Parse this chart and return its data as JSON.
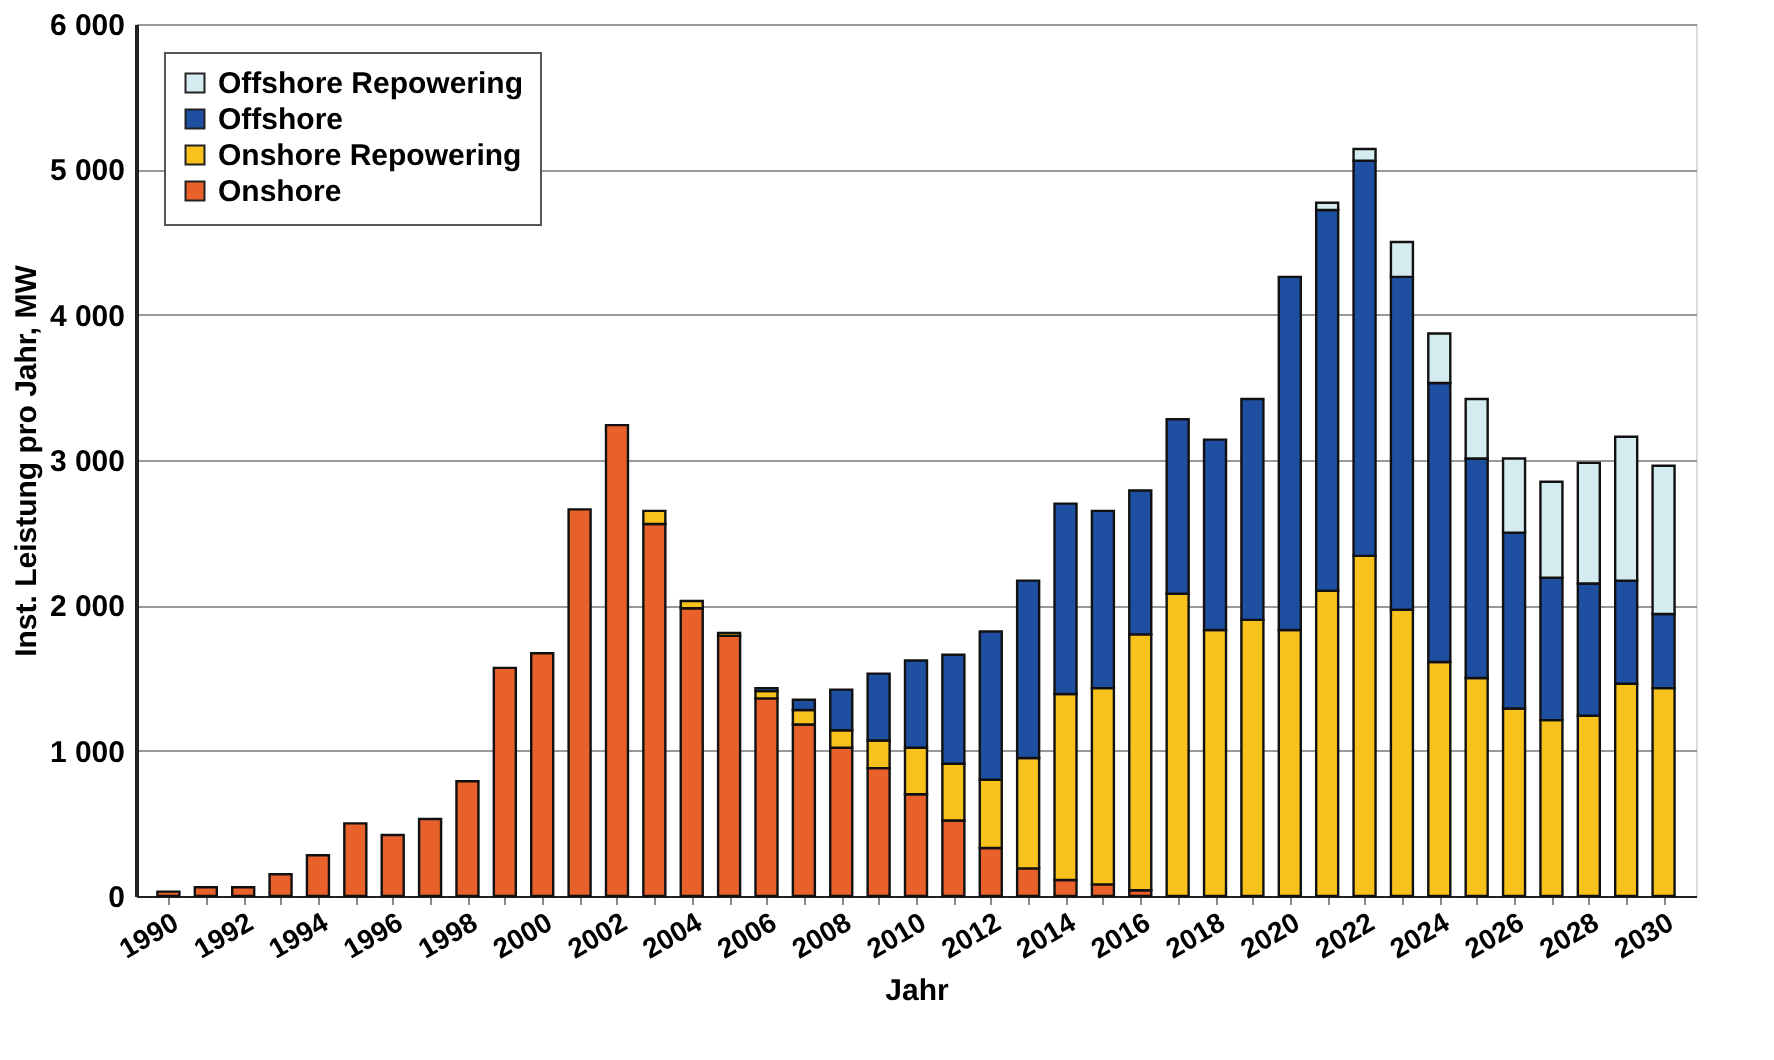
{
  "chart_data": {
    "type": "bar",
    "stacked": true,
    "xlabel": "Jahr",
    "ylabel": "Inst. Leistung pro Jahr, MW",
    "categories": [
      "1990",
      null,
      "1992",
      null,
      "1994",
      null,
      "1996",
      null,
      "1998",
      null,
      "2000",
      null,
      "2002",
      null,
      "2004",
      null,
      "2006",
      null,
      "2008",
      null,
      "2010",
      null,
      "2012",
      null,
      "2014",
      null,
      "2016",
      null,
      "2018",
      null,
      "2020",
      null,
      "2022",
      null,
      "2024",
      null,
      "2026",
      null,
      "2028",
      null,
      "2030"
    ],
    "series": [
      {
        "name": "Onshore",
        "color": "#e8612a",
        "values": [
          30,
          60,
          60,
          150,
          280,
          500,
          420,
          530,
          790,
          1570,
          1670,
          2660,
          3240,
          2560,
          1980,
          1790,
          1360,
          1180,
          1020,
          880,
          700,
          520,
          330,
          190,
          110,
          80,
          40,
          null,
          null,
          null,
          null,
          null,
          null,
          null,
          null,
          null,
          null,
          null,
          null,
          null,
          null
        ]
      },
      {
        "name": "Onshore Repowering",
        "color": "#f7c21b",
        "values": [
          null,
          null,
          null,
          null,
          null,
          null,
          null,
          null,
          null,
          null,
          null,
          null,
          null,
          90,
          50,
          20,
          50,
          100,
          120,
          190,
          320,
          390,
          470,
          760,
          1280,
          1350,
          1760,
          2080,
          1830,
          1900,
          1830,
          2100,
          2340,
          1970,
          1610,
          1500,
          1290,
          1210,
          1240,
          1460,
          1430
        ]
      },
      {
        "name": "Offshore",
        "color": "#1f4fa0",
        "values": [
          null,
          null,
          null,
          null,
          null,
          null,
          null,
          null,
          null,
          null,
          null,
          null,
          null,
          null,
          null,
          null,
          20,
          70,
          280,
          460,
          600,
          750,
          1020,
          1220,
          1310,
          1220,
          990,
          1200,
          1310,
          1520,
          2430,
          2620,
          2720,
          2290,
          1920,
          1510,
          1210,
          980,
          910,
          710,
          510
        ]
      },
      {
        "name": "Offshore Repowering",
        "color": "#d4ecef",
        "values": [
          null,
          null,
          null,
          null,
          null,
          null,
          null,
          null,
          null,
          null,
          null,
          null,
          null,
          null,
          null,
          null,
          null,
          null,
          null,
          null,
          null,
          null,
          null,
          null,
          null,
          null,
          null,
          null,
          null,
          null,
          null,
          50,
          80,
          240,
          340,
          410,
          510,
          660,
          830,
          990,
          1020
        ]
      }
    ],
    "ylim": [
      0,
      6000
    ],
    "yticks": [
      {
        "value": 0,
        "label": "0"
      },
      {
        "value": 1000,
        "label": "1 000"
      },
      {
        "value": 2000,
        "label": "2 000"
      },
      {
        "value": 3000,
        "label": "3 000"
      },
      {
        "value": 4000,
        "label": "4 000"
      },
      {
        "value": 5000,
        "label": "5 000"
      },
      {
        "value": 6000,
        "label": "6 000"
      }
    ],
    "grid": "y",
    "legend": "top left"
  }
}
